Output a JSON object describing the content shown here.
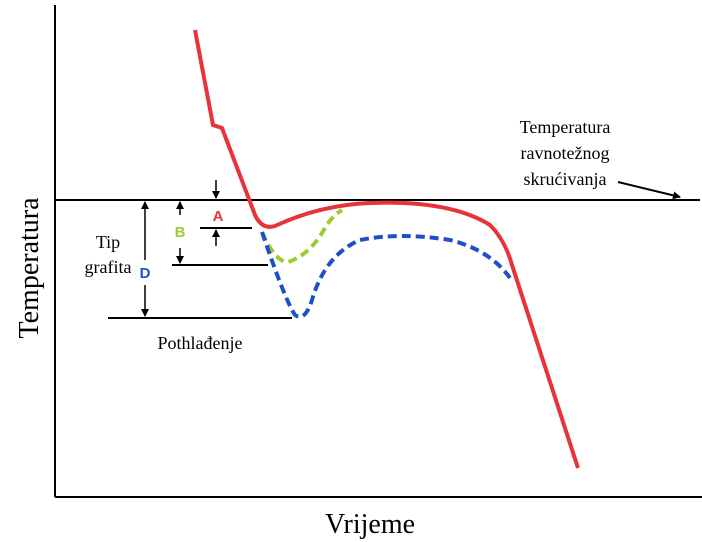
{
  "axes": {
    "y_label": "Temperatura",
    "x_label": "Vrijeme"
  },
  "annotations": {
    "equilibrium": [
      "Temperatura",
      "ravnotežnog",
      "skrućivanja"
    ],
    "graphite_type": [
      "Tip",
      "grafita"
    ],
    "undercooling": "Pothlađenje",
    "marks": {
      "a": "A",
      "b": "B",
      "d": "D"
    }
  }
}
